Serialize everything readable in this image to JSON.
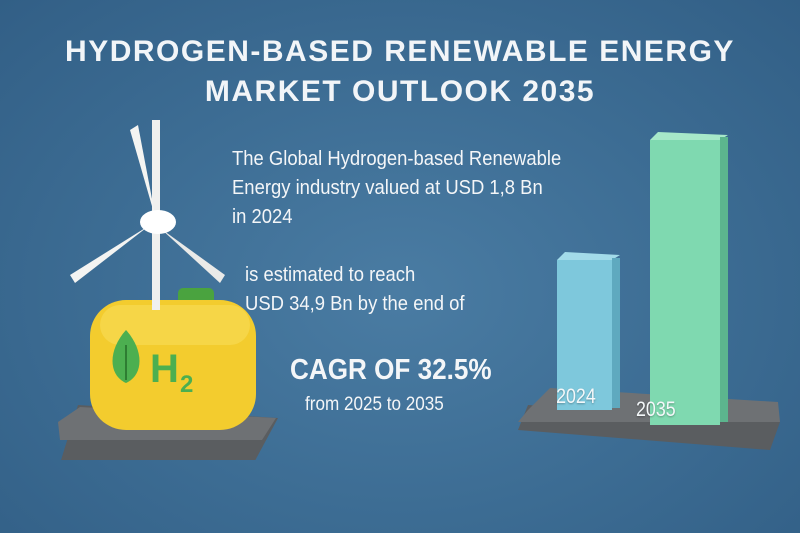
{
  "title": {
    "line1": "HYDROGEN-BASED RENEWABLE ENERGY",
    "line2": "MARKET OUTLOOK 2035"
  },
  "intro": {
    "line1": "The Global Hydrogen-based Renewable",
    "line2": "Energy industry valued at USD 1,8 Bn",
    "line3": "in 2024"
  },
  "forecast": {
    "line1": "is estimated to reach",
    "line2": "USD 34,9 Bn by the end of"
  },
  "cagr": {
    "headline": "CAGR OF 32.5%",
    "period": "from 2025 to 2035"
  },
  "illustration": {
    "tank_label": "H",
    "tank_sub": "2"
  },
  "bars": [
    {
      "label": "2024",
      "color": "#7ec8dc"
    },
    {
      "label": "2035",
      "color": "#7fd9b0"
    }
  ],
  "colors": {
    "background": "#3c6c93",
    "tank": "#f3cc2e",
    "accent_green": "#4caf50"
  }
}
